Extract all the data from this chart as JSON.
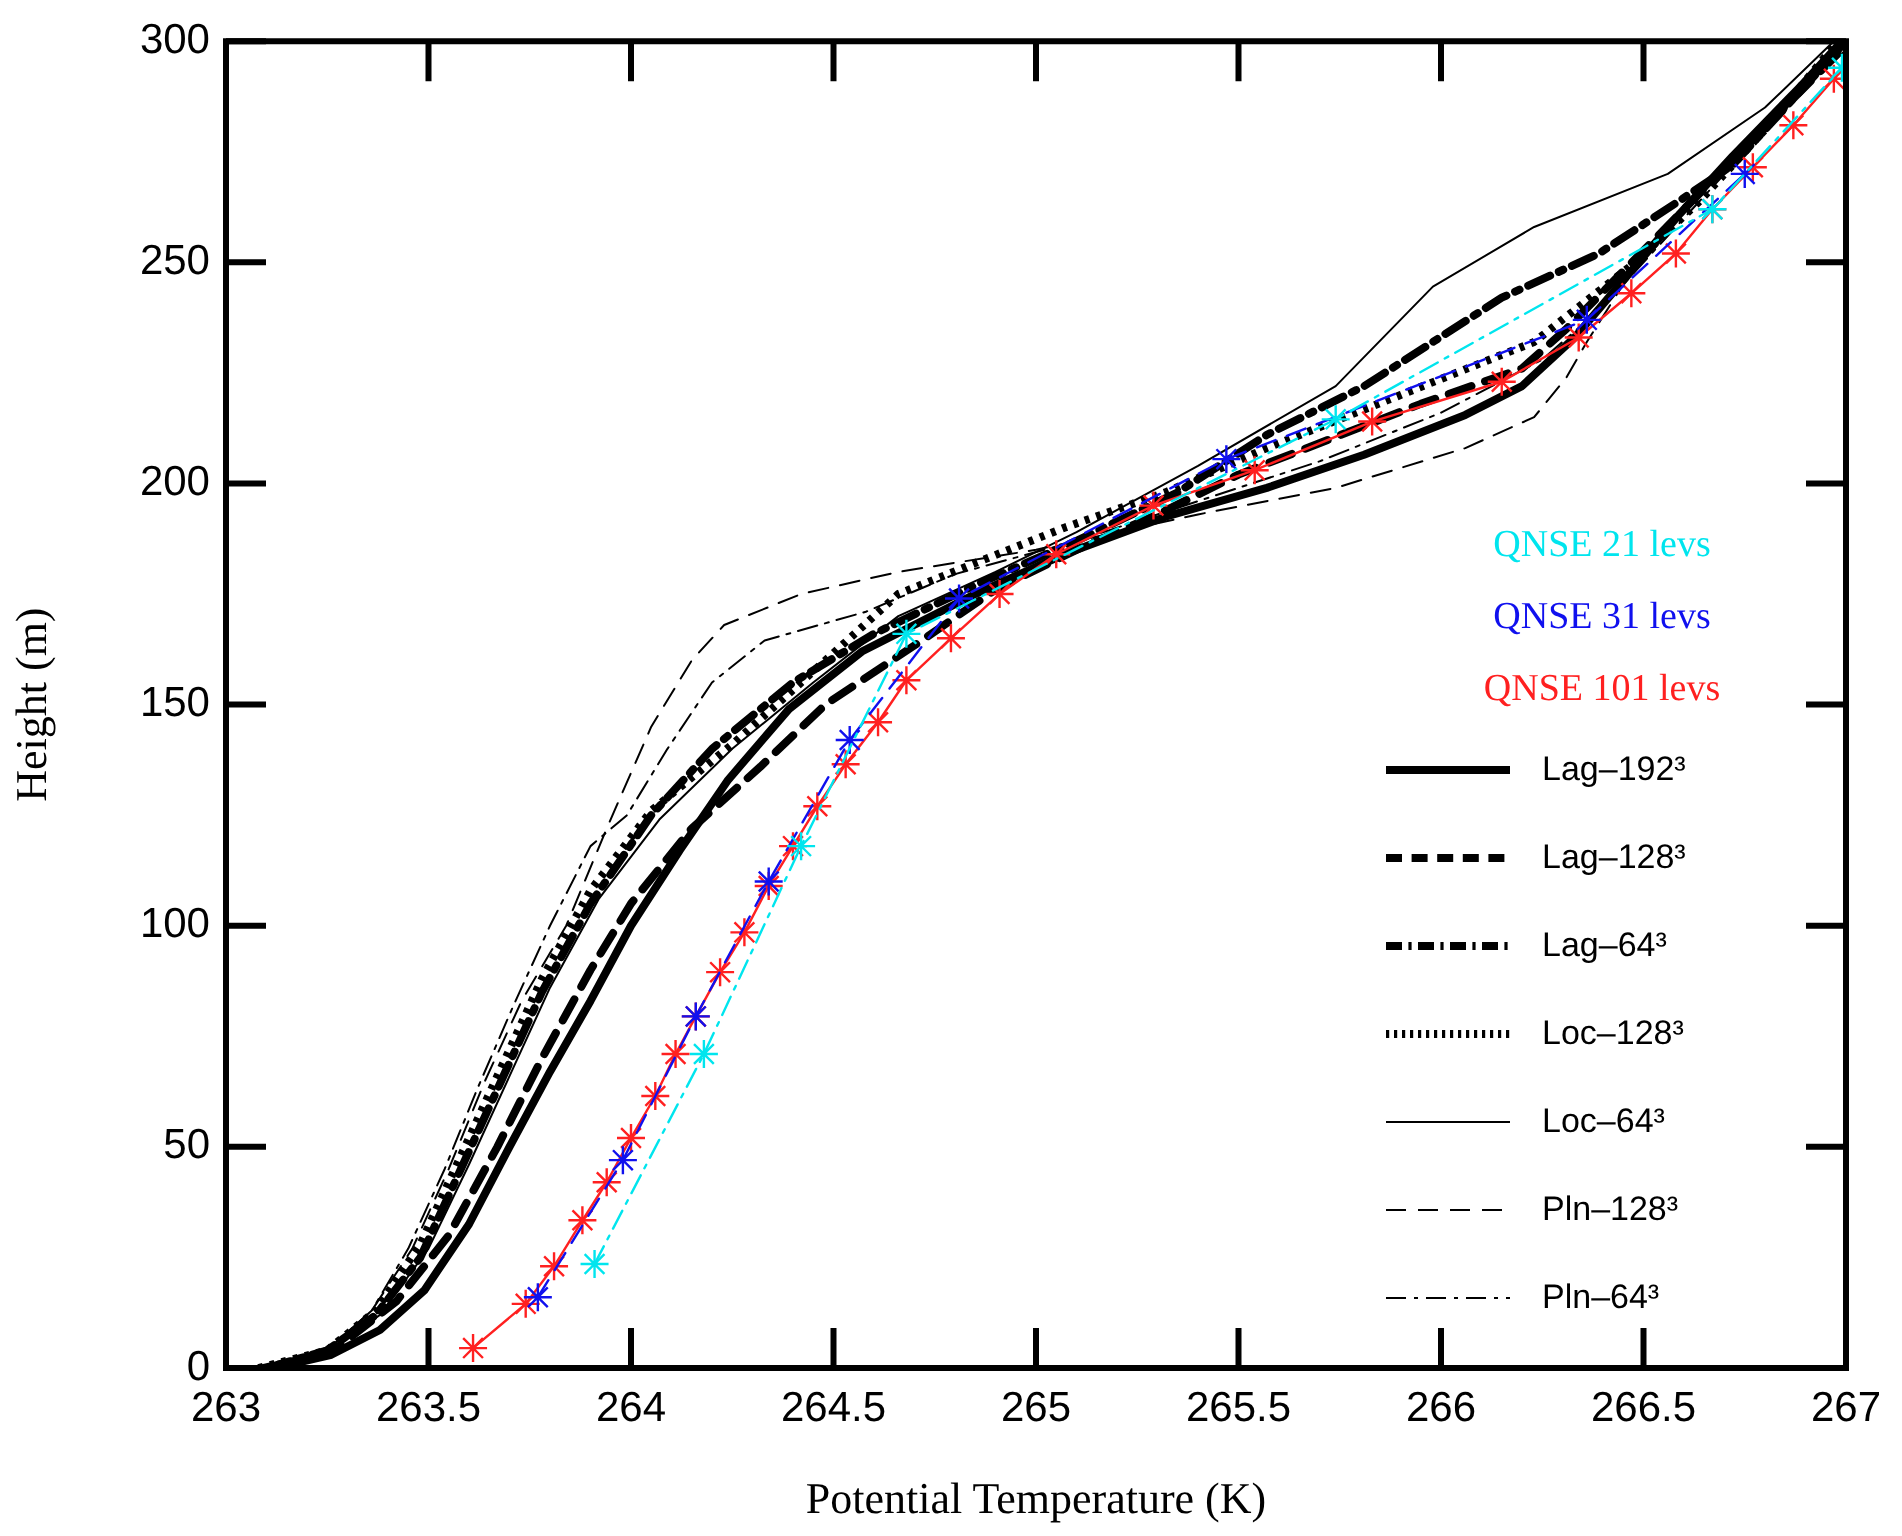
{
  "chart_data": {
    "type": "line",
    "xlabel": "Potential Temperature (K)",
    "ylabel": "Height (m)",
    "xlim": [
      263,
      267
    ],
    "xticks": [
      263,
      263.5,
      264,
      264.5,
      265,
      265.5,
      266,
      266.5,
      267
    ],
    "ylim": [
      0,
      300
    ],
    "yticks": [
      0,
      50,
      100,
      150,
      200,
      250,
      300
    ],
    "grid": false,
    "legend": "right",
    "series": [
      {
        "name": "QNSE 21 levs",
        "color": "#00e5ee",
        "marker": "cross",
        "line_style": "dashdot",
        "x": [
          263.91,
          264.18,
          264.42,
          264.68,
          265.74,
          266.67,
          266.99
        ],
        "values": [
          23.5,
          71,
          118,
          166,
          214.5,
          262,
          294
        ]
      },
      {
        "name": "QNSE 31 levs",
        "color": "#1010ee",
        "marker": "cross",
        "line_style": "dashed",
        "x": [
          263.77,
          263.98,
          264.16,
          264.34,
          264.54,
          264.81,
          265.47,
          266.36,
          266.75
        ],
        "values": [
          16,
          47,
          79.5,
          110,
          142,
          174,
          205.5,
          237,
          270
        ]
      },
      {
        "name": "QNSE 101 levs",
        "color": "#ff2020",
        "marker": "cross",
        "line_style": "solid",
        "x": [
          263.61,
          263.74,
          263.81,
          263.88,
          263.94,
          264.0,
          264.06,
          264.11,
          264.16,
          264.22,
          264.28,
          264.34,
          264.4,
          264.46,
          264.53,
          264.61,
          264.68,
          264.79,
          264.91,
          265.05,
          265.29,
          265.54,
          265.83,
          266.15,
          266.34,
          266.47,
          266.58,
          266.67,
          266.77,
          266.87,
          266.97
        ],
        "values": [
          4.5,
          14.5,
          23,
          33.4,
          42,
          52,
          61.5,
          71,
          79.5,
          89.5,
          98.5,
          109,
          118,
          127,
          136.5,
          146,
          155.5,
          165,
          175,
          184,
          195,
          203,
          214,
          223,
          233,
          243,
          252,
          262,
          271.5,
          281,
          291.5
        ]
      },
      {
        "name": "Lag–192³",
        "color": "#000000",
        "marker": "none",
        "line_style": "solid",
        "x": [
          263.12,
          263.26,
          263.38,
          263.49,
          263.6,
          263.7,
          263.8,
          263.9,
          264.0,
          264.12,
          264.24,
          264.39,
          264.57,
          264.85,
          265.07,
          265.32,
          265.57,
          265.81,
          266.06,
          266.2,
          266.33,
          266.46,
          266.59,
          266.72,
          266.89,
          266.99
        ],
        "values": [
          0,
          3,
          8.6,
          17.6,
          32.5,
          50,
          67,
          83,
          100,
          117,
          133,
          149,
          162,
          175,
          184,
          192.5,
          199,
          206.5,
          215.5,
          222,
          233,
          247,
          261,
          274,
          290,
          300
        ]
      },
      {
        "name": "Lag–128³",
        "color": "#000000",
        "marker": "none",
        "line_style": "dashed",
        "x": [
          263.14,
          263.28,
          263.42,
          263.55,
          263.67,
          263.78,
          263.9,
          264.0,
          264.15,
          264.32,
          264.48,
          264.71,
          264.9,
          265.1,
          265.3,
          265.5,
          265.95,
          266.2,
          266.31,
          266.45,
          266.6,
          266.75,
          267
        ],
        "values": [
          0,
          5,
          15,
          30,
          50,
          70,
          90,
          105,
          122,
          136,
          150,
          164,
          176,
          185,
          193,
          202,
          218,
          226,
          235,
          248,
          262,
          276,
          299
        ]
      },
      {
        "name": "Lag–64³",
        "color": "#000000",
        "marker": "none",
        "line_style": "dashdot",
        "x": [
          263.1,
          263.25,
          263.37,
          263.48,
          263.58,
          263.68,
          263.78,
          263.9,
          264.05,
          264.2,
          264.4,
          264.6,
          264.85,
          265.1,
          265.35,
          265.57,
          265.81,
          266.15,
          266.39,
          266.59,
          266.72,
          267
        ],
        "values": [
          0,
          4,
          12,
          25,
          45,
          65,
          85,
          105,
          125,
          140,
          155,
          166,
          177,
          187,
          198,
          211,
          222,
          242,
          252,
          264,
          272,
          300
        ]
      },
      {
        "name": "Loc–128³",
        "color": "#000000",
        "marker": "none",
        "line_style": "dotted",
        "x": [
          263.08,
          263.25,
          263.37,
          263.48,
          263.58,
          263.68,
          263.78,
          263.9,
          264.05,
          264.25,
          264.42,
          264.66,
          264.85,
          265.07,
          265.32,
          265.57,
          265.9,
          266.23,
          266.48,
          266.64,
          266.8,
          266.98
        ],
        "values": [
          0,
          4,
          13,
          28,
          48,
          68,
          88,
          108,
          126,
          141,
          155,
          175,
          182,
          190,
          198,
          208,
          220,
          232,
          250,
          264,
          280,
          300
        ]
      },
      {
        "name": "Loc–64³",
        "color": "#000000",
        "marker": "none",
        "line_style": "solid",
        "x": [
          263.11,
          263.26,
          263.38,
          263.5,
          263.6,
          263.7,
          263.8,
          263.92,
          264.07,
          264.25,
          264.45,
          264.66,
          264.9,
          265.1,
          265.4,
          265.74,
          265.98,
          266.23,
          266.56,
          266.8,
          266.97
        ],
        "values": [
          0,
          4,
          12,
          27,
          46,
          66,
          86,
          106,
          124,
          140,
          155,
          170,
          180,
          189,
          204,
          222,
          244.5,
          258,
          270,
          285,
          300
        ]
      },
      {
        "name": "Pln–128³",
        "color": "#000000",
        "marker": "none",
        "line_style": "dashed",
        "x": [
          263.09,
          263.25,
          263.36,
          263.46,
          263.55,
          263.64,
          263.73,
          263.84,
          263.94,
          264.05,
          264.15,
          264.23,
          264.42,
          264.66,
          265.0,
          265.4,
          265.74,
          266.06,
          266.23,
          266.31,
          266.36,
          266.45,
          266.6,
          266.8,
          267
        ],
        "values": [
          0,
          4,
          13,
          27,
          45,
          65,
          83,
          100,
          122,
          145,
          160,
          168,
          175,
          180,
          185,
          193,
          199,
          208,
          215,
          224,
          232,
          245,
          262,
          282,
          298
        ]
      },
      {
        "name": "Pln–64³",
        "color": "#000000",
        "marker": "none",
        "line_style": "dashdot",
        "x": [
          263.06,
          263.25,
          263.36,
          263.45,
          263.54,
          263.62,
          263.71,
          263.8,
          263.9,
          263.99,
          264.09,
          264.2,
          264.33,
          264.58,
          264.8,
          265.1,
          265.4,
          265.7,
          266.0,
          266.25,
          266.4,
          266.55,
          266.75,
          266.99
        ],
        "values": [
          0,
          4,
          13,
          27,
          45,
          63,
          82,
          100,
          118,
          125,
          140,
          155,
          164.5,
          171,
          179.5,
          187,
          196,
          205,
          216,
          228,
          240,
          255,
          275,
          298
        ]
      }
    ]
  }
}
